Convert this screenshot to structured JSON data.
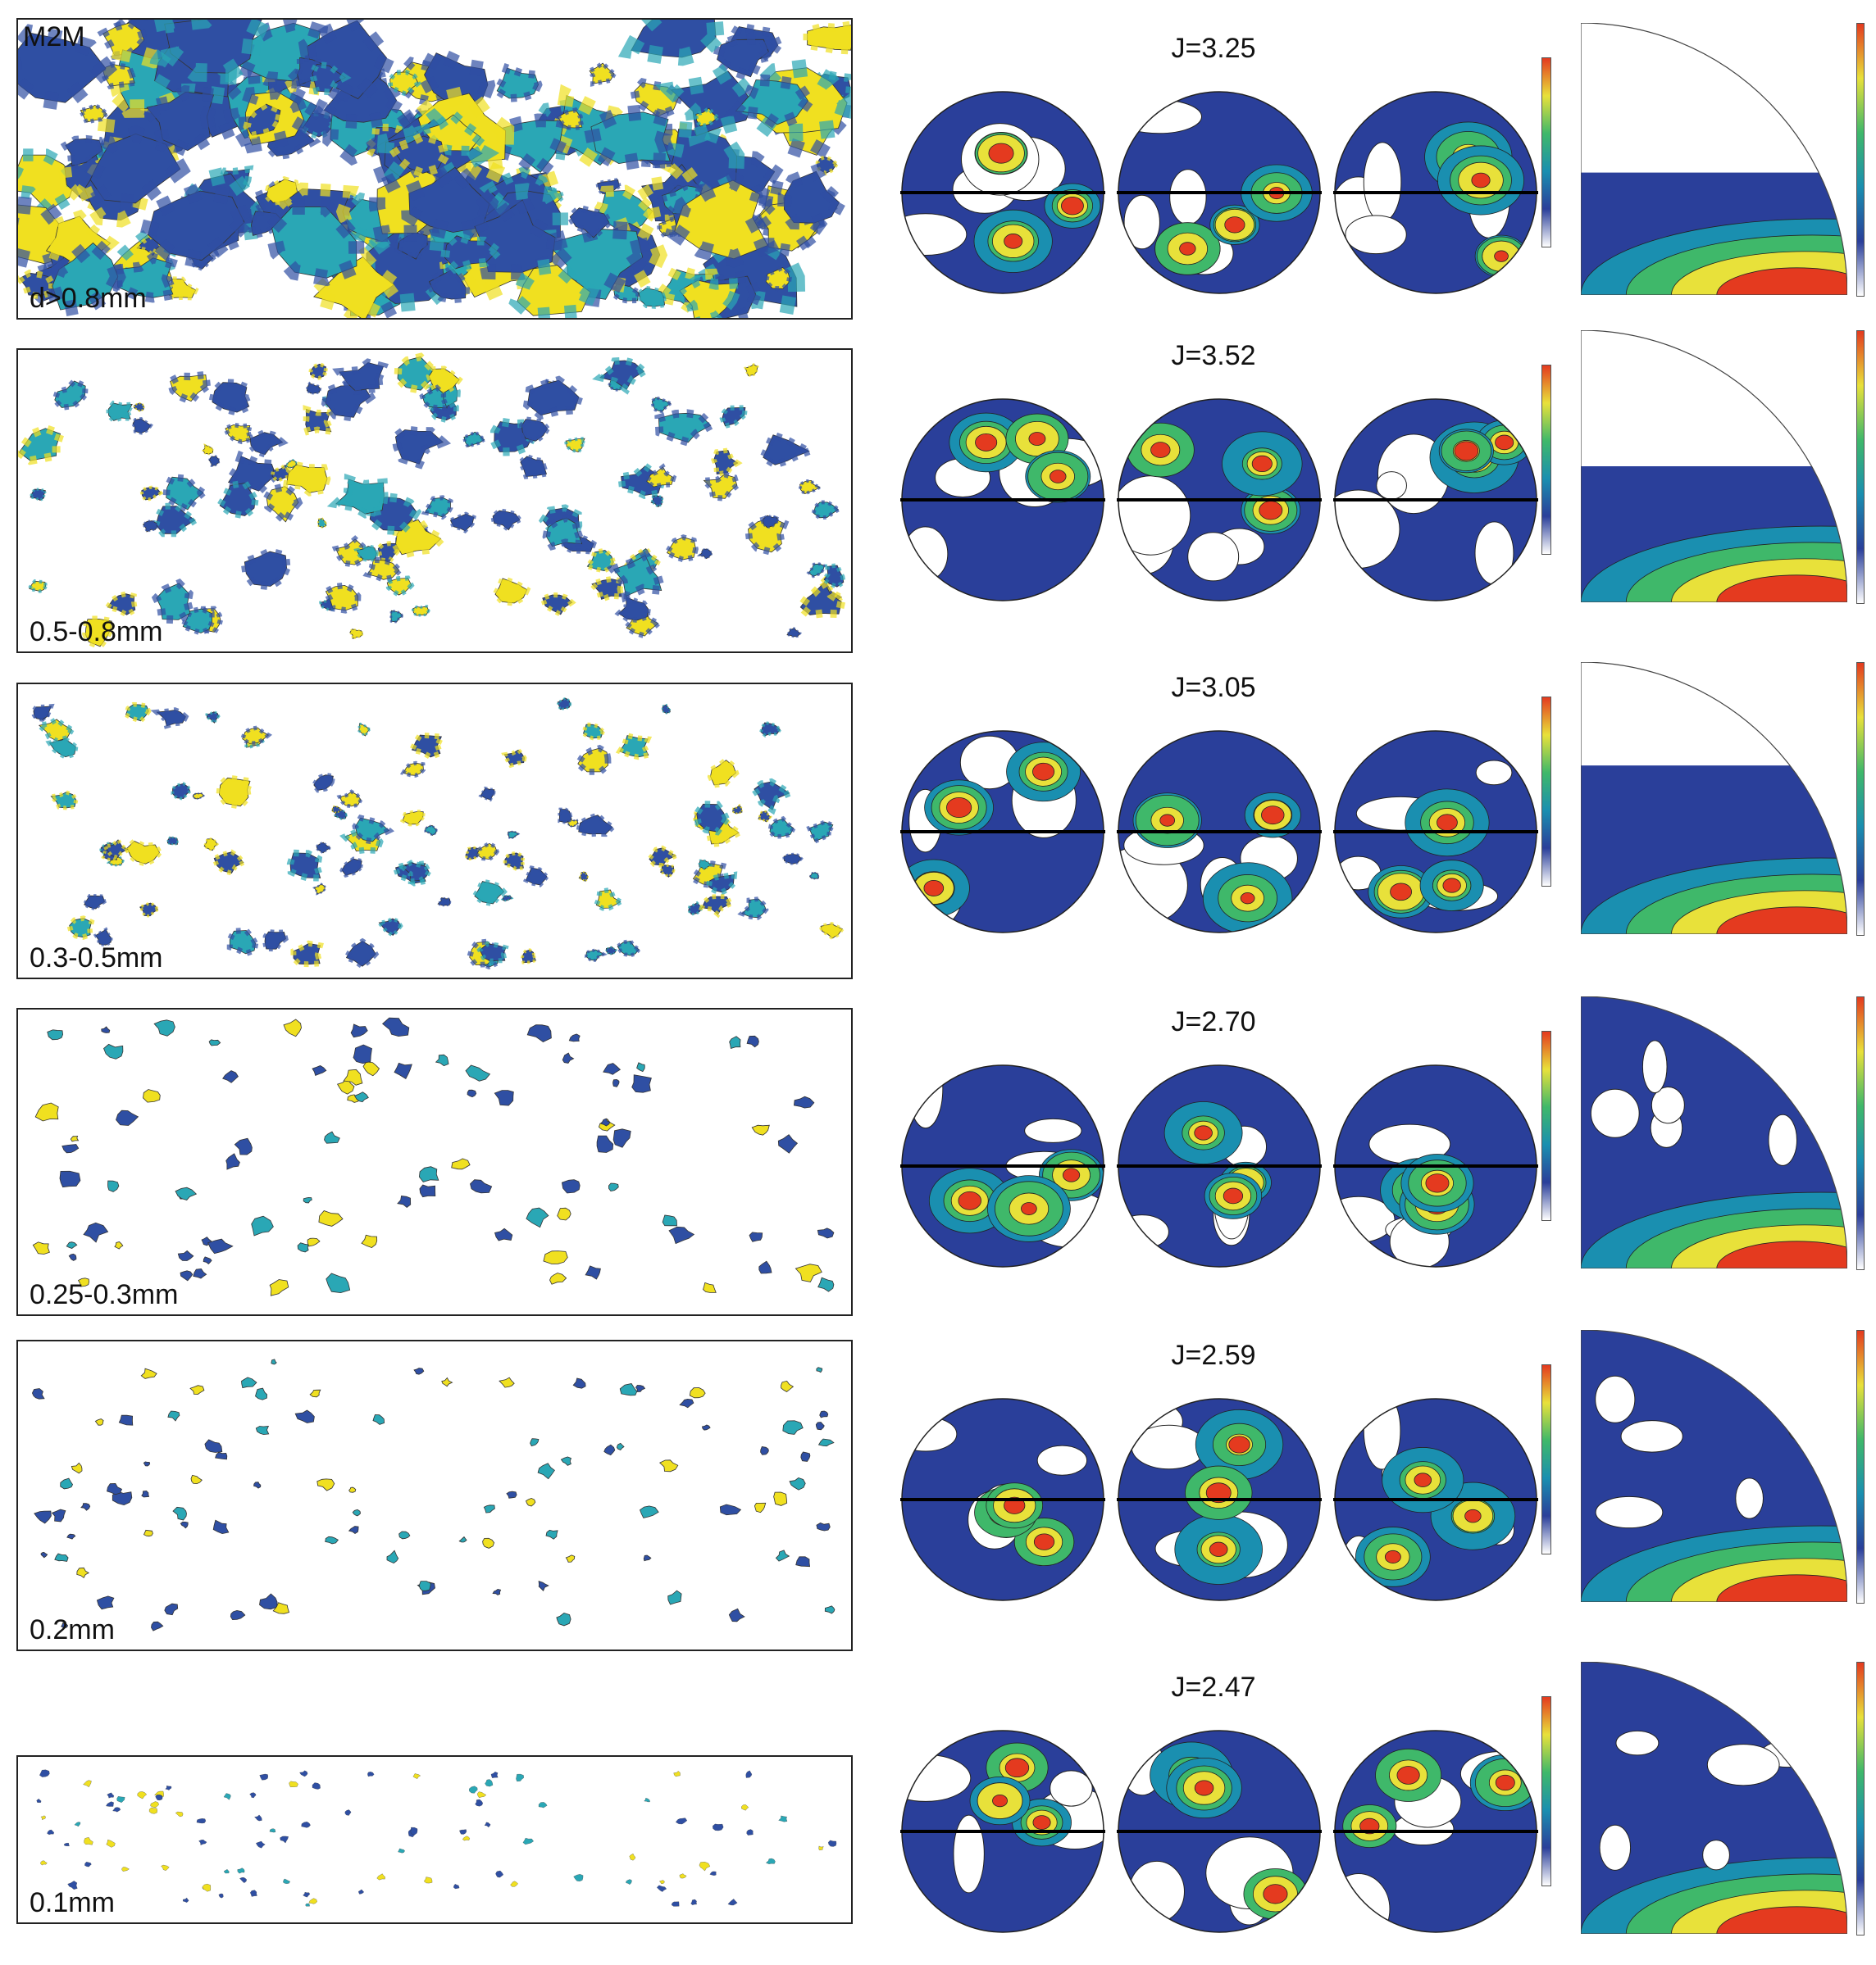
{
  "figure": {
    "sample_label": "M2M",
    "rows": [
      {
        "size_label": "d>0.8mm",
        "j_label": "J=3.25",
        "density": 1.0,
        "grain_size": 1.0
      },
      {
        "size_label": "0.5-0.8mm",
        "j_label": "J=3.52",
        "density": 0.55,
        "grain_size": 0.45
      },
      {
        "size_label": "0.3-0.5mm",
        "j_label": "J=3.05",
        "density": 0.5,
        "grain_size": 0.33
      },
      {
        "size_label": "0.25-0.3mm",
        "j_label": "J=2.70",
        "density": 0.45,
        "grain_size": 0.22
      },
      {
        "size_label": "0.2mm",
        "j_label": "J=2.59",
        "density": 0.5,
        "grain_size": 0.15
      },
      {
        "size_label": "0.1mm",
        "j_label": "J=2.47",
        "density": 0.5,
        "grain_size": 0.06
      }
    ],
    "colors": {
      "grain_blue": "#2f4fa3",
      "grain_teal": "#2aa7b5",
      "grain_yellow": "#f0e020",
      "contour_dark": "#2a3f9a",
      "contour_mid": "#1a8fb0",
      "contour_green": "#3fb86a",
      "contour_yellow": "#e8e13a",
      "contour_red": "#e43a1f"
    }
  }
}
